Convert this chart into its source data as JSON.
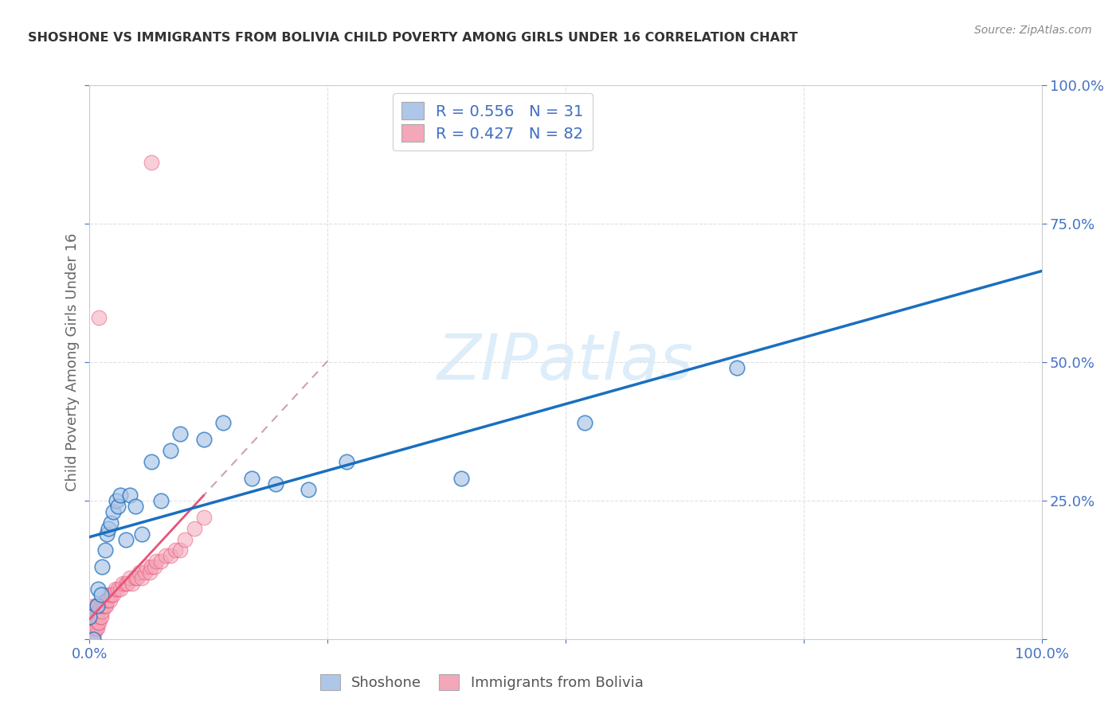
{
  "title": "SHOSHONE VS IMMIGRANTS FROM BOLIVIA CHILD POVERTY AMONG GIRLS UNDER 16 CORRELATION CHART",
  "source": "Source: ZipAtlas.com",
  "ylabel": "Child Poverty Among Girls Under 16",
  "shoshone_R": 0.556,
  "shoshone_N": 31,
  "bolivia_R": 0.427,
  "bolivia_N": 82,
  "shoshone_color": "#aec6e8",
  "bolivia_color": "#f4a7b9",
  "shoshone_line_color": "#1a6fbe",
  "bolivia_line_color": "#e8547a",
  "bolivia_dash_color": "#d0a0b0",
  "watermark_color": "#d8eaf8",
  "background_color": "#ffffff",
  "grid_color": "#e0e0e0",
  "tick_label_color": "#4472c4",
  "title_color": "#333333",
  "source_color": "#888888",
  "ylabel_color": "#666666",
  "shoshone_x": [
    0.0,
    0.004,
    0.008,
    0.009,
    0.012,
    0.013,
    0.016,
    0.018,
    0.02,
    0.022,
    0.025,
    0.028,
    0.03,
    0.032,
    0.038,
    0.042,
    0.048,
    0.055,
    0.065,
    0.075,
    0.085,
    0.095,
    0.12,
    0.14,
    0.17,
    0.195,
    0.23,
    0.27,
    0.39,
    0.52,
    0.68
  ],
  "shoshone_y": [
    0.04,
    0.0,
    0.06,
    0.09,
    0.08,
    0.13,
    0.16,
    0.19,
    0.2,
    0.21,
    0.23,
    0.25,
    0.24,
    0.26,
    0.18,
    0.26,
    0.24,
    0.19,
    0.32,
    0.25,
    0.34,
    0.37,
    0.36,
    0.39,
    0.29,
    0.28,
    0.27,
    0.32,
    0.29,
    0.39,
    0.49
  ],
  "bolivia_x": [
    0.0,
    0.0,
    0.0,
    0.0,
    0.0,
    0.001,
    0.001,
    0.001,
    0.001,
    0.002,
    0.002,
    0.002,
    0.003,
    0.003,
    0.003,
    0.003,
    0.004,
    0.004,
    0.004,
    0.004,
    0.005,
    0.005,
    0.005,
    0.005,
    0.005,
    0.006,
    0.006,
    0.006,
    0.007,
    0.007,
    0.007,
    0.008,
    0.008,
    0.008,
    0.009,
    0.009,
    0.01,
    0.01,
    0.011,
    0.011,
    0.012,
    0.012,
    0.013,
    0.014,
    0.015,
    0.016,
    0.017,
    0.018,
    0.019,
    0.02,
    0.021,
    0.022,
    0.023,
    0.025,
    0.027,
    0.03,
    0.032,
    0.035,
    0.038,
    0.04,
    0.042,
    0.045,
    0.048,
    0.05,
    0.052,
    0.055,
    0.058,
    0.06,
    0.063,
    0.065,
    0.068,
    0.07,
    0.075,
    0.08,
    0.085,
    0.09,
    0.095,
    0.1,
    0.11,
    0.12,
    0.065,
    0.01
  ],
  "bolivia_y": [
    0.0,
    0.01,
    0.02,
    0.03,
    0.05,
    0.0,
    0.01,
    0.02,
    0.04,
    0.01,
    0.02,
    0.03,
    0.01,
    0.02,
    0.03,
    0.05,
    0.01,
    0.02,
    0.03,
    0.05,
    0.01,
    0.02,
    0.03,
    0.04,
    0.06,
    0.02,
    0.03,
    0.05,
    0.02,
    0.04,
    0.06,
    0.02,
    0.04,
    0.06,
    0.03,
    0.05,
    0.03,
    0.05,
    0.04,
    0.06,
    0.04,
    0.06,
    0.05,
    0.06,
    0.06,
    0.06,
    0.06,
    0.07,
    0.07,
    0.08,
    0.07,
    0.08,
    0.08,
    0.08,
    0.09,
    0.09,
    0.09,
    0.1,
    0.1,
    0.1,
    0.11,
    0.1,
    0.11,
    0.11,
    0.12,
    0.11,
    0.12,
    0.13,
    0.12,
    0.13,
    0.13,
    0.14,
    0.14,
    0.15,
    0.15,
    0.16,
    0.16,
    0.18,
    0.2,
    0.22,
    0.86,
    0.58
  ],
  "xlim": [
    0,
    1.0
  ],
  "ylim": [
    0,
    1.0
  ],
  "xticks": [
    0.0,
    0.25,
    0.5,
    0.75,
    1.0
  ],
  "xticklabels": [
    "0.0%",
    "",
    "",
    "",
    "100.0%"
  ],
  "yticks_right": [
    0.0,
    0.25,
    0.5,
    0.75,
    1.0
  ],
  "yticklabels_right": [
    "",
    "25.0%",
    "50.0%",
    "75.0%",
    "100.0%"
  ]
}
